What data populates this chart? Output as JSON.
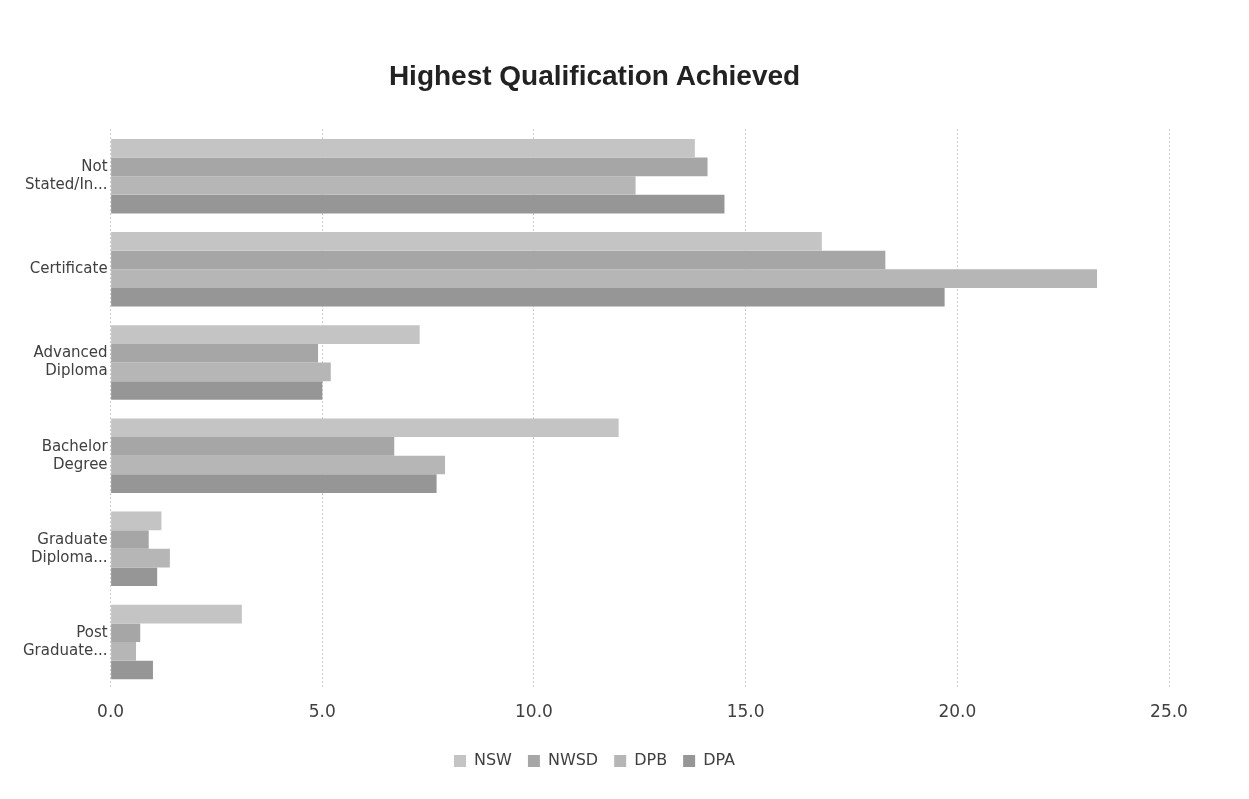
{
  "chart_data": {
    "type": "bar",
    "orientation": "horizontal",
    "title": "Highest Qualification Achieved",
    "categories": [
      "Not Stated/In...",
      "Certificate",
      "Advanced Diploma",
      "Bachelor Degree",
      "Graduate Diploma...",
      "Post Graduate..."
    ],
    "series": [
      {
        "name": "NSW",
        "color": "#c4c4c4",
        "values": [
          13.8,
          16.8,
          7.3,
          12.0,
          1.2,
          3.1
        ]
      },
      {
        "name": "NWSD",
        "color": "#a6a6a6",
        "values": [
          14.1,
          18.3,
          4.9,
          6.7,
          0.9,
          0.7
        ]
      },
      {
        "name": "DPB",
        "color": "#b6b6b6",
        "values": [
          12.4,
          23.3,
          5.2,
          7.9,
          1.4,
          0.6
        ]
      },
      {
        "name": "DPA",
        "color": "#969696",
        "values": [
          14.5,
          19.7,
          5.0,
          7.7,
          1.1,
          1.0
        ]
      }
    ],
    "xlim": [
      0,
      25
    ],
    "xticks": [
      {
        "value": 0,
        "label": "0.0"
      },
      {
        "value": 5,
        "label": "5.0"
      },
      {
        "value": 10,
        "label": "10.0"
      },
      {
        "value": 15,
        "label": "15.0"
      },
      {
        "value": 20,
        "label": "20.0"
      },
      {
        "value": 25,
        "label": "25.0"
      }
    ],
    "grid": "x",
    "legend": "bottom"
  }
}
